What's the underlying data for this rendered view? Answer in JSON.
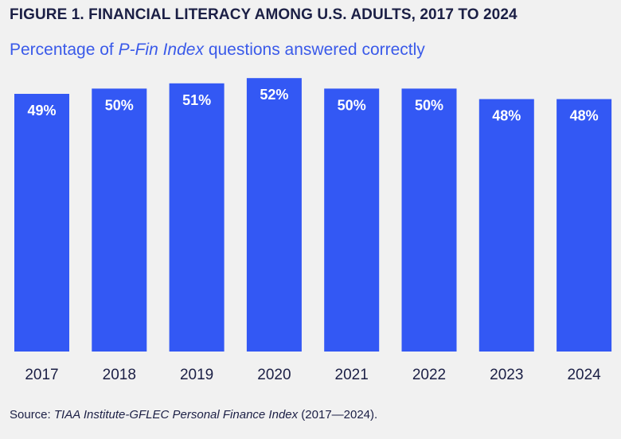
{
  "header": {
    "title": "FIGURE 1. FINANCIAL LITERACY AMONG U.S. ADULTS, 2017 TO 2024",
    "subtitle_pre": "Percentage of ",
    "subtitle_em": "P-Fin Index",
    "subtitle_post": " questions answered correctly"
  },
  "footer": {
    "source_label": "Source: ",
    "source_em": "TIAA Institute-GFLEC Personal Finance Index",
    "source_post": " (2017—2024)."
  },
  "chart_data": {
    "type": "bar",
    "title": "FIGURE 1. FINANCIAL LITERACY AMONG U.S. ADULTS, 2017 TO 2024",
    "subtitle": "Percentage of P-Fin Index questions answered correctly",
    "categories": [
      "2017",
      "2018",
      "2019",
      "2020",
      "2021",
      "2022",
      "2023",
      "2024"
    ],
    "values": [
      49,
      50,
      51,
      52,
      50,
      50,
      48,
      48
    ],
    "data_labels": [
      "49%",
      "50%",
      "51%",
      "52%",
      "50%",
      "50%",
      "48%",
      "48%"
    ],
    "unit": "%",
    "xlabel": "",
    "ylabel": "",
    "grid": false,
    "legend": false,
    "colors": {
      "bar": "#3358f4",
      "label": "#ffffff",
      "tick": "#1b1f45"
    }
  }
}
